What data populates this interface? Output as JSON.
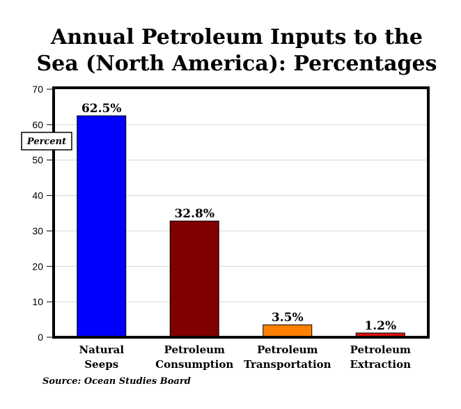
{
  "chart_data": {
    "type": "bar",
    "title_lines": [
      "Annual Petroleum Inputs to the",
      "Sea (North America): Percentages"
    ],
    "ylabel": "Percent",
    "xlabel": "",
    "source": "Source: Ocean Studies Board",
    "ylim": [
      0,
      70
    ],
    "yticks": [
      0,
      10,
      20,
      30,
      40,
      50,
      60,
      70
    ],
    "grid": true,
    "categories": [
      [
        "Natural",
        "Seeps"
      ],
      [
        "Petroleum",
        "Consumption"
      ],
      [
        "Petroleum",
        "Transportation"
      ],
      [
        "Petroleum",
        "Extraction"
      ]
    ],
    "values": [
      62.5,
      32.8,
      3.5,
      1.2
    ],
    "data_labels": [
      "62.5%",
      "32.8%",
      "3.5%",
      "1.2%"
    ],
    "colors": [
      "#0000ff",
      "#800000",
      "#ff8000",
      "#dd1111"
    ]
  }
}
